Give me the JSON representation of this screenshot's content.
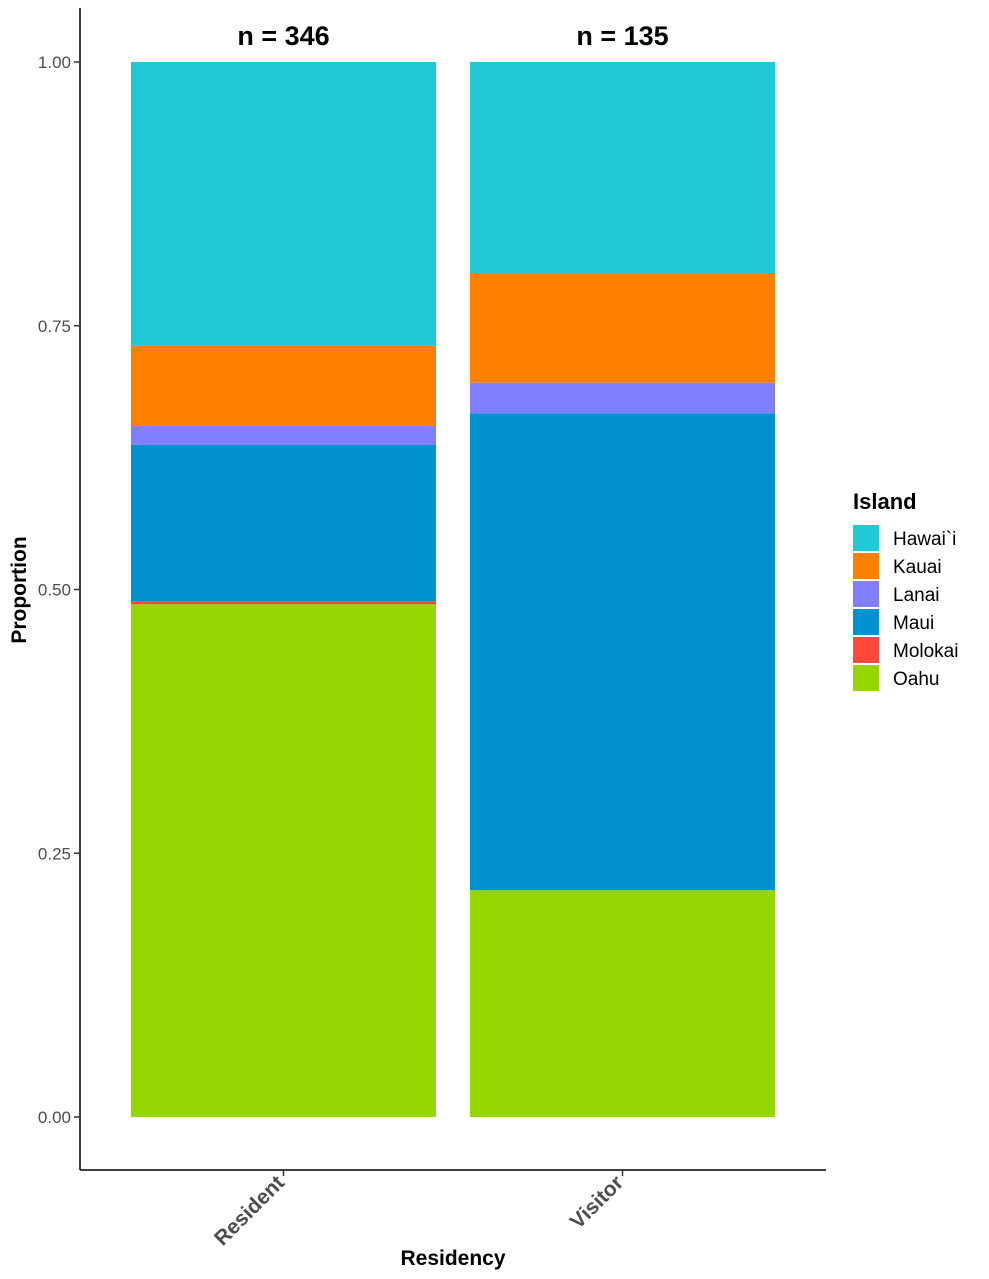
{
  "chart_data": {
    "type": "bar",
    "stacked": true,
    "categories": [
      "Resident",
      "Visitor"
    ],
    "bar_labels": [
      "n = 346",
      "n = 135"
    ],
    "xlabel": "Residency",
    "ylabel": "Proportion",
    "ylim": [
      0,
      1
    ],
    "yticks": [
      "0.00",
      "0.25",
      "0.50",
      "0.75",
      "1.00"
    ],
    "grid": false,
    "legend_title": "Island",
    "legend_position": "right",
    "series": [
      {
        "name": "Oahu",
        "color": "#95D600",
        "values": [
          0.486,
          0.215
        ]
      },
      {
        "name": "Molokai",
        "color": "#FF483C",
        "values": [
          0.003,
          0.0
        ]
      },
      {
        "name": "Maui",
        "color": "#0092CF",
        "values": [
          0.148,
          0.452
        ]
      },
      {
        "name": "Lanai",
        "color": "#8080FF",
        "values": [
          0.018,
          0.029
        ]
      },
      {
        "name": "Kauai",
        "color": "#FF8000",
        "values": [
          0.076,
          0.104
        ]
      },
      {
        "name": "Hawai`i",
        "color": "#1FCAD4",
        "values": [
          0.269,
          0.2
        ]
      }
    ],
    "legend_order": [
      "Hawai`i",
      "Kauai",
      "Lanai",
      "Maui",
      "Molokai",
      "Oahu"
    ]
  }
}
